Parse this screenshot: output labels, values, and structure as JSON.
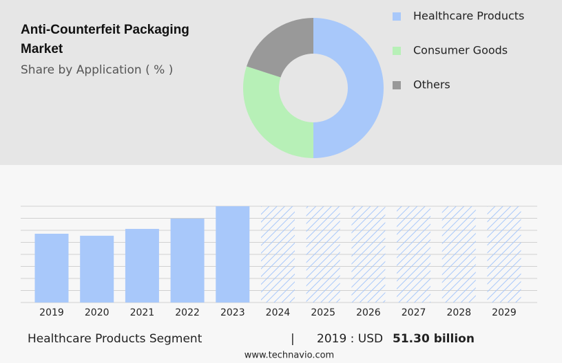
{
  "header": {
    "title": "Anti-Counterfeit Packaging Market",
    "subtitle": "Share by Application ( % )"
  },
  "chart_data": [
    {
      "type": "donut",
      "categories": [
        "Healthcare Products",
        "Consumer Goods",
        "Others"
      ],
      "values": [
        50,
        30,
        20
      ],
      "colors": [
        "#a8c8fa",
        "#b7f0b7",
        "#999999"
      ]
    },
    {
      "type": "bar",
      "categories": [
        "2019",
        "2020",
        "2021",
        "2022",
        "2023",
        "2024",
        "2025",
        "2026",
        "2027",
        "2028",
        "2029"
      ],
      "values": [
        51.3,
        49.8,
        54.9,
        62.6,
        71.8,
        null,
        null,
        null,
        null,
        null,
        null
      ],
      "color": "#a8c8fa",
      "ylim": [
        0,
        71.8
      ]
    }
  ],
  "footer": {
    "segment": "Healthcare Products Segment",
    "separator": "|",
    "year_label": "2019 : USD",
    "value": "51.30 billion"
  },
  "source": "www.technavio.com"
}
